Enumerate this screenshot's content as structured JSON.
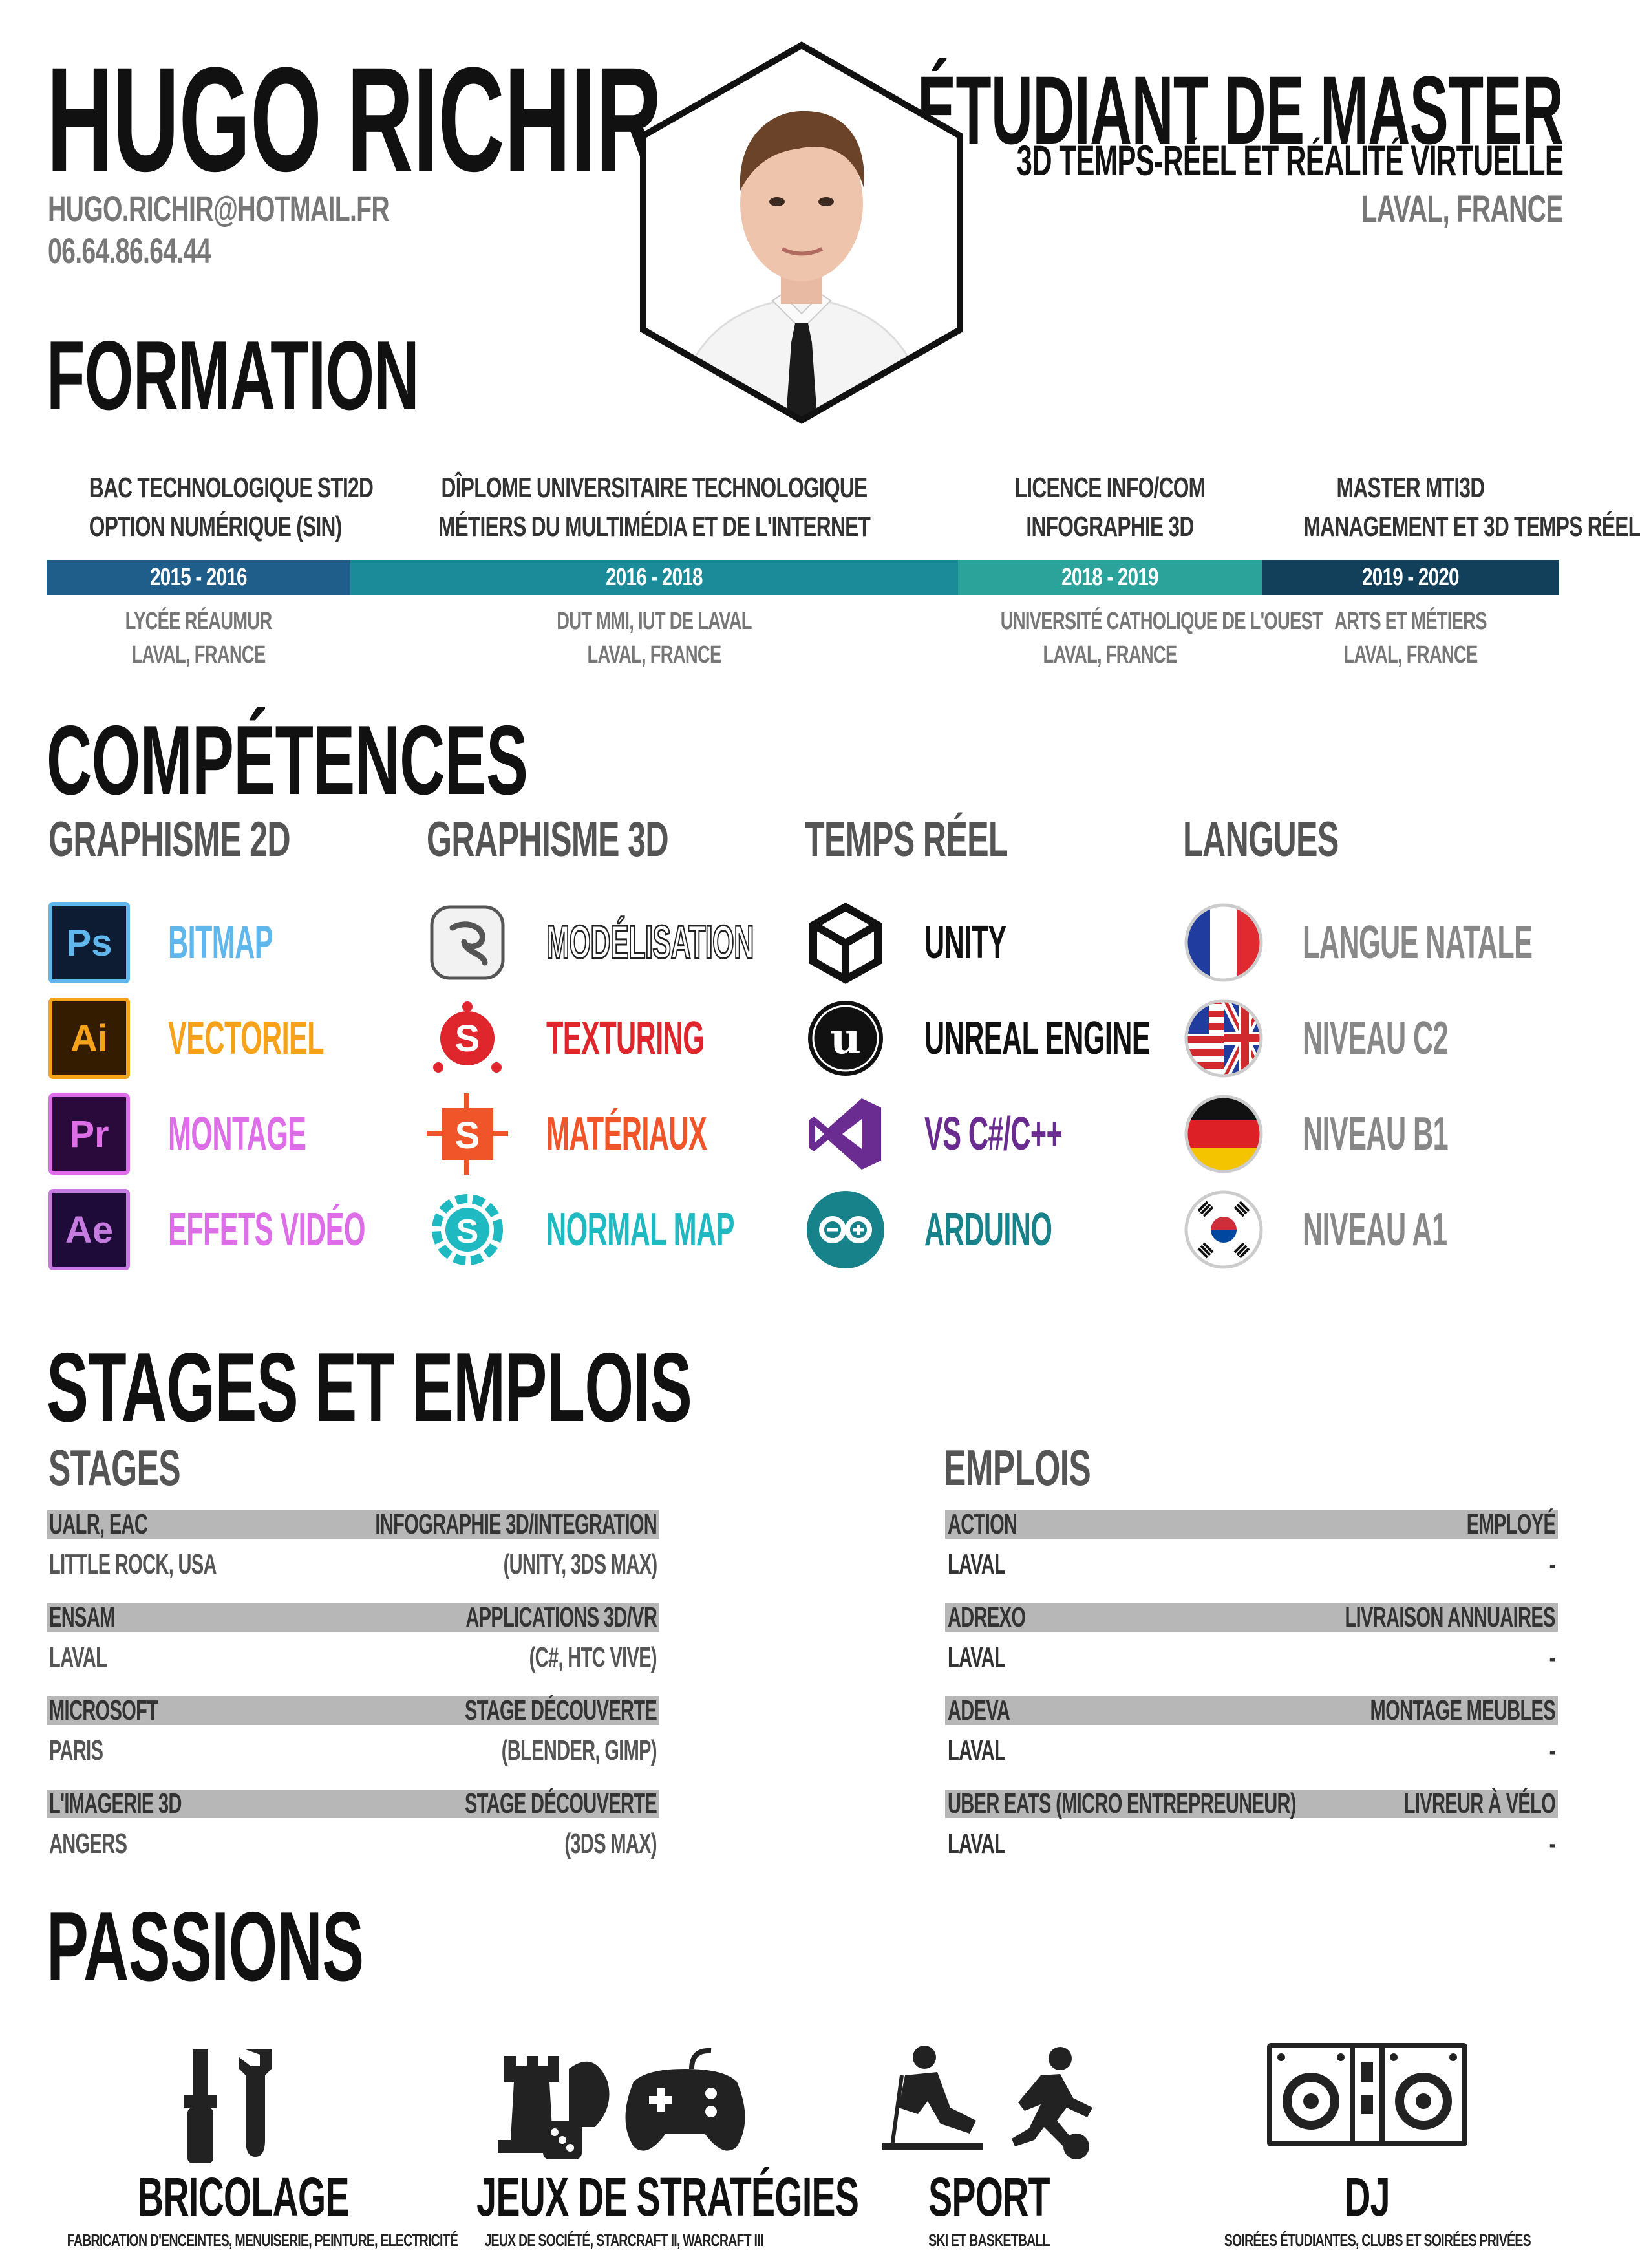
{
  "header": {
    "name": "HUGO RICHIR",
    "email": "HUGO.RICHIR@HOTMAIL.FR",
    "phone": "06.64.86.64.44",
    "job_title": "ÉTUDIANT DE MASTER",
    "job_subtitle": "3D TEMPS-RÉEL ET RÉALITÉ VIRTUELLE",
    "city": "LAVAL, FRANCE"
  },
  "sections": {
    "formation": "FORMATION",
    "competences": "COMPÉTENCES",
    "stages_emplois": "STAGES ET EMPLOIS",
    "passions": "PASSIONS"
  },
  "formation": [
    {
      "line1": "BAC TECHNOLOGIQUE STI2D",
      "line2": "OPTION NUMÉRIQUE (SIN)",
      "years": "2015 - 2016",
      "school": "LYCÉE RÉAUMUR",
      "place": "LAVAL, FRANCE",
      "color": "#1f5d8a"
    },
    {
      "line1": "DÎPLOME UNIVERSITAIRE TECHNOLOGIQUE",
      "line2": "MÉTIERS DU MULTIMÉDIA ET DE L'INTERNET",
      "years": "2016 - 2018",
      "school": "DUT MMI, IUT DE LAVAL",
      "place": "LAVAL, FRANCE",
      "color": "#1b8a99"
    },
    {
      "line1": "LICENCE INFO/COM",
      "line2": "INFOGRAPHIE 3D",
      "years": "2018 - 2019",
      "school": "UNIVERSITÉ CATHOLIQUE DE L'OUEST",
      "place": "LAVAL, FRANCE",
      "color": "#2ba39a"
    },
    {
      "line1": "MASTER MTI3D",
      "line2": "MANAGEMENT ET 3D TEMPS RÉEL",
      "years": "2019 - 2020",
      "school": "ARTS ET MÉTIERS",
      "place": "LAVAL, FRANCE",
      "color": "#123f5a"
    }
  ],
  "skills": {
    "col1": {
      "title": "GRAPHISME 2D",
      "items": [
        {
          "icon": "photoshop-icon",
          "abbr": "Ps",
          "label": "BITMAP",
          "color": "#5fb7ec"
        },
        {
          "icon": "illustrator-icon",
          "abbr": "Ai",
          "label": "VECTORIEL",
          "color": "#f7a21b"
        },
        {
          "icon": "premiere-icon",
          "abbr": "Pr",
          "label": "MONTAGE",
          "color": "#dd6ee8"
        },
        {
          "icon": "after-effects-icon",
          "abbr": "Ae",
          "label": "EFFETS VIDÉO",
          "color": "#dd6ee8"
        }
      ]
    },
    "col2": {
      "title": "GRAPHISME 3D",
      "items": [
        {
          "icon": "3ds-max-icon",
          "label": "MODÉLISATION",
          "color": "#ffffff"
        },
        {
          "icon": "substance-painter-icon",
          "label": "TEXTURING",
          "color": "#e0262d"
        },
        {
          "icon": "substance-designer-icon",
          "label": "MATÉRIAUX",
          "color": "#f0552a"
        },
        {
          "icon": "substance-b2m-icon",
          "label": "NORMAL MAP",
          "color": "#1fb9c2"
        }
      ]
    },
    "col3": {
      "title": "TEMPS RÉEL",
      "items": [
        {
          "icon": "unity-icon",
          "label": "UNITY",
          "color": "#111111"
        },
        {
          "icon": "unreal-engine-icon",
          "label": "UNREAL ENGINE",
          "color": "#111111"
        },
        {
          "icon": "visual-studio-icon",
          "label": "VS C#/C++",
          "color": "#6a2c91"
        },
        {
          "icon": "arduino-icon",
          "label": "ARDUINO",
          "color": "#17828a"
        }
      ]
    },
    "col4": {
      "title": "LANGUES",
      "items": [
        {
          "icon": "france-flag-icon",
          "label": "LANGUE NATALE",
          "color": "#888888"
        },
        {
          "icon": "uk-us-flag-icon",
          "label": "NIVEAU C2",
          "color": "#888888"
        },
        {
          "icon": "germany-flag-icon",
          "label": "NIVEAU B1",
          "color": "#888888"
        },
        {
          "icon": "korea-flag-icon",
          "label": "NIVEAU A1",
          "color": "#888888"
        }
      ]
    }
  },
  "stages": {
    "title": "STAGES",
    "items": [
      {
        "org": "UALR, EAC",
        "role": "INFOGRAPHIE 3D/INTEGRATION",
        "place": "LITTLE ROCK, USA",
        "detail": "(UNITY, 3DS MAX)"
      },
      {
        "org": "ENSAM",
        "role": "APPLICATIONS 3D/VR",
        "place": "LAVAL",
        "detail": "(C#, HTC VIVE)"
      },
      {
        "org": "MICROSOFT",
        "role": "STAGE DÉCOUVERTE",
        "place": "PARIS",
        "detail": "(BLENDER, GIMP)"
      },
      {
        "org": "L'IMAGERIE 3D",
        "role": "STAGE DÉCOUVERTE",
        "place": "ANGERS",
        "detail": "(3DS MAX)"
      }
    ]
  },
  "emplois": {
    "title": "EMPLOIS",
    "items": [
      {
        "org": "ACTION",
        "role": "EMPLOYÉ",
        "place": "LAVAL",
        "detail": "-"
      },
      {
        "org": "ADREXO",
        "role": "LIVRAISON ANNUAIRES",
        "place": "LAVAL",
        "detail": "-"
      },
      {
        "org": "ADEVA",
        "role": "MONTAGE MEUBLES",
        "place": "LAVAL",
        "detail": "-"
      },
      {
        "org": "UBER EATS  (MICRO ENTREPREUNEUR)",
        "role": "LIVREUR À VÉLO",
        "place": "LAVAL",
        "detail": "-"
      }
    ]
  },
  "passions": [
    {
      "icon": "tools-icon",
      "title": "BRICOLAGE",
      "sub": "FABRICATION D'ENCEINTES, MENUISERIE, PEINTURE, ELECTRICITÉ"
    },
    {
      "icon": "games-icon",
      "title": "JEUX DE STRATÉGIES",
      "sub": "JEUX DE SOCIÉTÉ, STARCRAFT II, WARCRAFT III"
    },
    {
      "icon": "sport-icon",
      "title": "SPORT",
      "sub": "SKI ET BASKETBALL"
    },
    {
      "icon": "dj-icon",
      "title": "DJ",
      "sub": "SOIRÉES ÉTUDIANTES, CLUBS ET SOIRÉES PRIVÉES"
    }
  ]
}
